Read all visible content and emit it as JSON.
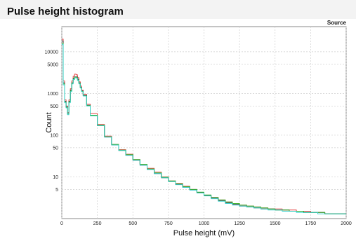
{
  "title": "Pulse height histogram",
  "chart_data": {
    "type": "line",
    "title": "Pulse height histogram",
    "xlabel": "Pulse height (mV)",
    "ylabel": "Count",
    "legend_title": "Source",
    "legend_position": "top-right",
    "grid": true,
    "xlim": [
      0,
      2000
    ],
    "ylim": [
      1,
      40000
    ],
    "y_scale": "log",
    "x_ticks": [
      0,
      250,
      500,
      750,
      1000,
      1250,
      1500,
      1750,
      2000
    ],
    "y_ticks": [
      5,
      10,
      50,
      100,
      500,
      1000,
      5000,
      10000
    ],
    "x_tick_labels": [
      "0",
      "250",
      "500",
      "750",
      "1000",
      "1250",
      "1500",
      "1750",
      "2000"
    ],
    "y_tick_labels": [
      "5",
      "10",
      "50",
      "100",
      "500",
      "1000",
      "5000",
      "10000"
    ],
    "series": [
      {
        "color": "#e03030",
        "x": [
          0,
          10,
          20,
          30,
          40,
          50,
          60,
          70,
          80,
          90,
          100,
          110,
          120,
          130,
          140,
          150,
          175,
          200,
          250,
          300,
          350,
          400,
          450,
          500,
          550,
          600,
          650,
          700,
          750,
          800,
          850,
          900,
          950,
          1000,
          1050,
          1100,
          1150,
          1200,
          1250,
          1300,
          1350,
          1400,
          1450,
          1500,
          1550,
          1600,
          1650,
          1700,
          1750,
          1800,
          1850,
          1900,
          1950,
          2000
        ],
        "y": [
          20000,
          2000,
          700,
          500,
          350,
          700,
          1300,
          2000,
          2600,
          2900,
          2800,
          2400,
          1900,
          1500,
          1200,
          950,
          550,
          330,
          180,
          95,
          60,
          45,
          35,
          26,
          20,
          16,
          13,
          10,
          8,
          7,
          6,
          5,
          4.2,
          3.6,
          3.2,
          2.8,
          2.5,
          2.3,
          2.1,
          2,
          1.9,
          1.8,
          1.7,
          1.7,
          1.6,
          1.6,
          1.5,
          1.5,
          1.4,
          1.4,
          1.3,
          1.3,
          1.3,
          1.3
        ]
      },
      {
        "color": "#2a2a2a",
        "x": [
          0,
          10,
          20,
          30,
          40,
          50,
          60,
          70,
          80,
          90,
          100,
          110,
          120,
          130,
          140,
          150,
          175,
          200,
          250,
          300,
          350,
          400,
          450,
          500,
          550,
          600,
          650,
          700,
          750,
          800,
          850,
          900,
          950,
          1000,
          1050,
          1100,
          1150,
          1200,
          1250,
          1300,
          1350,
          1400,
          1450,
          1500,
          1550,
          1600,
          1650,
          1700,
          1750,
          1800,
          1850,
          1900,
          1950,
          2000
        ],
        "y": [
          18000,
          1800,
          650,
          480,
          330,
          650,
          1200,
          1800,
          2300,
          2500,
          2500,
          2200,
          1800,
          1400,
          1150,
          900,
          520,
          300,
          170,
          90,
          58,
          43,
          33,
          25,
          19,
          15,
          12,
          9.5,
          7.8,
          6.6,
          5.7,
          4.9,
          4.2,
          3.6,
          3.1,
          2.7,
          2.4,
          2.2,
          2,
          1.9,
          1.8,
          1.7,
          1.7,
          1.6,
          1.6,
          1.5,
          1.5,
          1.4,
          1.4,
          1.4,
          1.3,
          1.3,
          1.3,
          1.3
        ]
      },
      {
        "color": "#30c030",
        "x": [
          0,
          10,
          20,
          30,
          40,
          50,
          60,
          70,
          80,
          90,
          100,
          110,
          120,
          130,
          140,
          150,
          175,
          200,
          250,
          300,
          350,
          400,
          450,
          500,
          550,
          600,
          650,
          700,
          750,
          800,
          850,
          900,
          950,
          1000,
          1050,
          1100,
          1150,
          1200,
          1250,
          1300,
          1350,
          1400,
          1450,
          1500,
          1550,
          1600,
          1650,
          1700,
          1750,
          1800,
          1850,
          1900,
          1950,
          2000
        ],
        "y": [
          16000,
          1700,
          620,
          460,
          320,
          620,
          1150,
          1750,
          2200,
          2450,
          2400,
          2100,
          1750,
          1380,
          1120,
          880,
          510,
          300,
          175,
          92,
          60,
          44,
          34,
          26,
          20,
          15.5,
          12.5,
          9.8,
          8,
          6.8,
          5.8,
          5,
          4.3,
          3.7,
          3.2,
          2.8,
          2.5,
          2.3,
          2.1,
          2,
          1.9,
          1.8,
          1.7,
          1.6,
          1.6,
          1.5,
          1.5,
          1.4,
          1.4,
          1.4,
          1.3,
          1.3,
          1.3,
          1.3
        ]
      },
      {
        "color": "#30d0d0",
        "x": [
          0,
          10,
          20,
          30,
          40,
          50,
          60,
          70,
          80,
          90,
          100,
          110,
          120,
          130,
          140,
          150,
          175,
          200,
          250,
          300,
          350,
          400,
          450,
          500,
          550,
          600,
          650,
          700,
          750,
          800,
          850,
          900,
          950,
          1000,
          1050,
          1100,
          1150,
          1200,
          1250,
          1300,
          1350,
          1400,
          1450,
          1500,
          1550,
          1600,
          1650,
          1700,
          1750,
          1800,
          1850,
          1900,
          1950,
          2000
        ],
        "y": [
          15000,
          1600,
          600,
          450,
          310,
          600,
          1100,
          1700,
          2150,
          2350,
          2350,
          2050,
          1700,
          1350,
          1100,
          870,
          500,
          290,
          170,
          90,
          58,
          43,
          33,
          25,
          19,
          15,
          12,
          9.5,
          7.7,
          6.5,
          5.6,
          4.8,
          4.1,
          3.5,
          3,
          2.6,
          2.3,
          2.1,
          2,
          1.9,
          1.8,
          1.7,
          1.6,
          1.6,
          1.5,
          1.5,
          1.4,
          1.4,
          1.4,
          1.3,
          1.3,
          1.3,
          1.3,
          1.3
        ]
      }
    ]
  }
}
